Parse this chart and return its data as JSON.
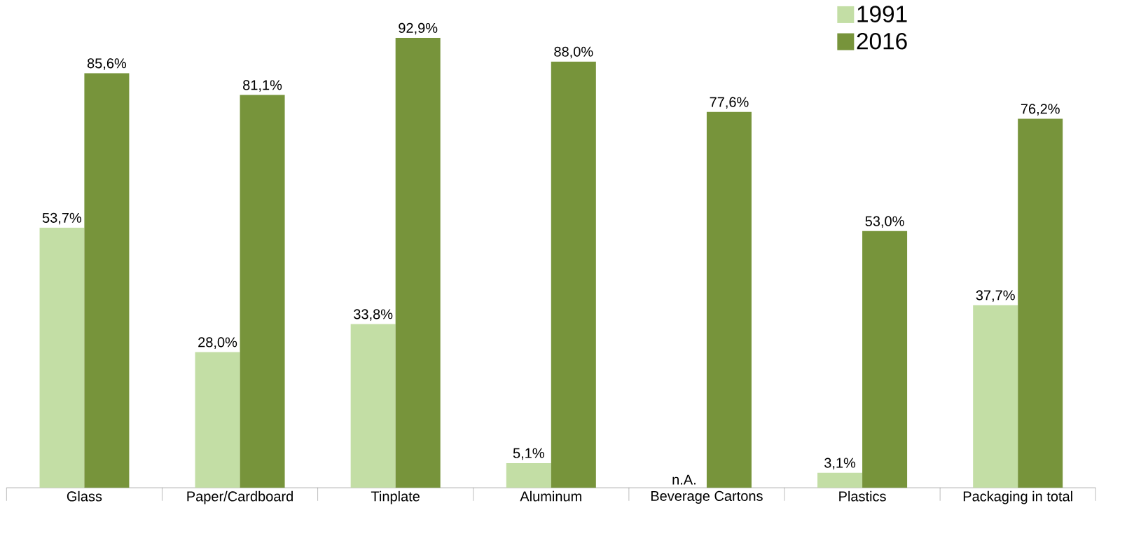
{
  "chart_data": {
    "type": "bar",
    "categories": [
      "Glass",
      "Paper/Cardboard",
      "Tinplate",
      "Aluminum",
      "Beverage Cartons",
      "Plastics",
      "Packaging in total"
    ],
    "series": [
      {
        "name": "1991",
        "color": "#c3dea5",
        "values": [
          53.7,
          28.0,
          33.8,
          5.1,
          null,
          3.1,
          37.7
        ],
        "value_labels": [
          "53,7%",
          "28,0%",
          "33,8%",
          "5,1%",
          "n.A.",
          "3,1%",
          "37,7%"
        ]
      },
      {
        "name": "2016",
        "color": "#77943b",
        "values": [
          85.6,
          81.1,
          92.9,
          88.0,
          77.6,
          53.0,
          76.2
        ],
        "value_labels": [
          "85,6%",
          "81,1%",
          "92,9%",
          "88,0%",
          "77,6%",
          "53,0%",
          "76,2%"
        ]
      }
    ],
    "legend": "top right"
  }
}
